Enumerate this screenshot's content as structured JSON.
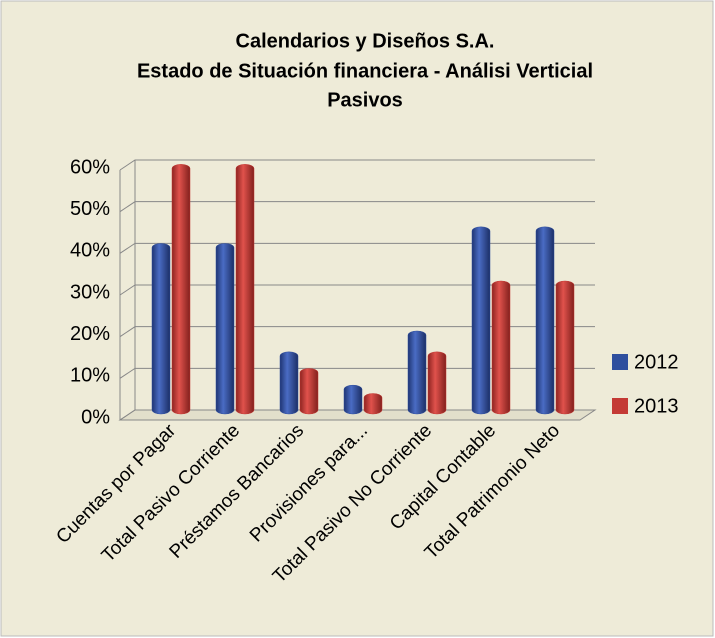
{
  "chart_data": {
    "type": "bar",
    "title": [
      "Calendarios y Diseños S.A.",
      "Estado de Situación financiera - Análisi Verticial",
      "Pasivos"
    ],
    "categories": [
      "Cuentas por Pagar",
      "Total Pasivo Corriente",
      "Préstamos Bancarios",
      "Provisiones para...",
      "Total Pasivo No Corriente",
      "Capital Contable",
      "Total Patrimonio Neto"
    ],
    "series": [
      {
        "name": "2012",
        "color": "#2f4f9e",
        "values": [
          39,
          39,
          13,
          5,
          18,
          43,
          43
        ]
      },
      {
        "name": "2013",
        "color": "#c43a35",
        "values": [
          58,
          58,
          9,
          3,
          13,
          30,
          30
        ]
      }
    ],
    "ylim": [
      0,
      60
    ],
    "yticks": [
      {
        "value": 0,
        "label": "0%"
      },
      {
        "value": 10,
        "label": "10%"
      },
      {
        "value": 20,
        "label": "20%"
      },
      {
        "value": 30,
        "label": "30%"
      },
      {
        "value": 40,
        "label": "40%"
      },
      {
        "value": 50,
        "label": "50%"
      },
      {
        "value": 60,
        "label": "60%"
      }
    ],
    "grid": true,
    "legend": "right"
  }
}
